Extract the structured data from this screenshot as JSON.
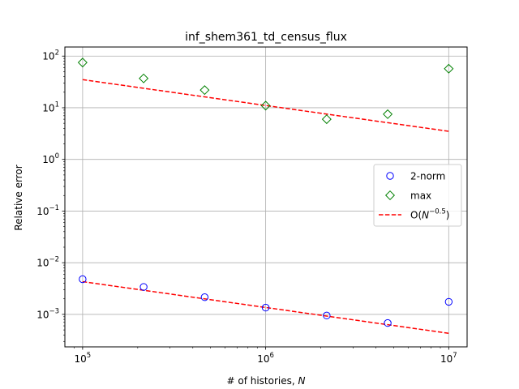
{
  "chart_data": {
    "type": "scatter",
    "title": "inf_shem361_td_census_flux",
    "xlabel": "# of histories, ",
    "xlabel_var": "N",
    "ylabel": "Relative error",
    "xscale": "log",
    "yscale": "log",
    "xlim": [
      80000,
      12600000
    ],
    "ylim": [
      0.000235,
      150
    ],
    "grid": true,
    "legend_position": "center-right",
    "x_ticks": [
      {
        "value": 100000,
        "base": "10",
        "exp": "5"
      },
      {
        "value": 1000000,
        "base": "10",
        "exp": "6"
      },
      {
        "value": 10000000,
        "base": "10",
        "exp": "7"
      }
    ],
    "y_ticks": [
      {
        "value": 0.001,
        "base": "10",
        "exp": "−3"
      },
      {
        "value": 0.01,
        "base": "10",
        "exp": "−2"
      },
      {
        "value": 0.1,
        "base": "10",
        "exp": "−1"
      },
      {
        "value": 1,
        "base": "10",
        "exp": "0"
      },
      {
        "value": 10,
        "base": "10",
        "exp": "1"
      },
      {
        "value": 100,
        "base": "10",
        "exp": "2"
      }
    ],
    "x": [
      100000,
      215443,
      464159,
      1000000,
      2154435,
      4641589,
      10000000
    ],
    "series": [
      {
        "name": "2-norm",
        "marker": "circle",
        "color": "#0000ff",
        "values": [
          0.0048,
          0.0034,
          0.00215,
          0.00135,
          0.00095,
          0.00068,
          0.00175
        ]
      },
      {
        "name": "max",
        "marker": "diamond",
        "color": "#008000",
        "values": [
          75,
          37,
          22,
          11,
          6,
          7.5,
          57
        ]
      }
    ],
    "reference_lines": [
      {
        "name": "O(N^−0.5)",
        "style": "dashed",
        "color": "#ff0000",
        "x": [
          100000,
          10000000
        ],
        "y": [
          0.0043,
          0.00043
        ]
      },
      {
        "name": "O(N^−0.5)",
        "style": "dashed",
        "color": "#ff0000",
        "x": [
          100000,
          10000000
        ],
        "y": [
          35,
          3.5
        ]
      }
    ],
    "legend": {
      "items": [
        {
          "label": "2-norm",
          "marker": "circle",
          "color": "#0000ff"
        },
        {
          "label": "max",
          "marker": "diamond",
          "color": "#008000"
        },
        {
          "label_prefix": "O(",
          "label_var": "N",
          "label_exp": "−0.5",
          "label_suffix": ")",
          "marker": "dashed-line",
          "color": "#ff0000"
        }
      ]
    }
  }
}
